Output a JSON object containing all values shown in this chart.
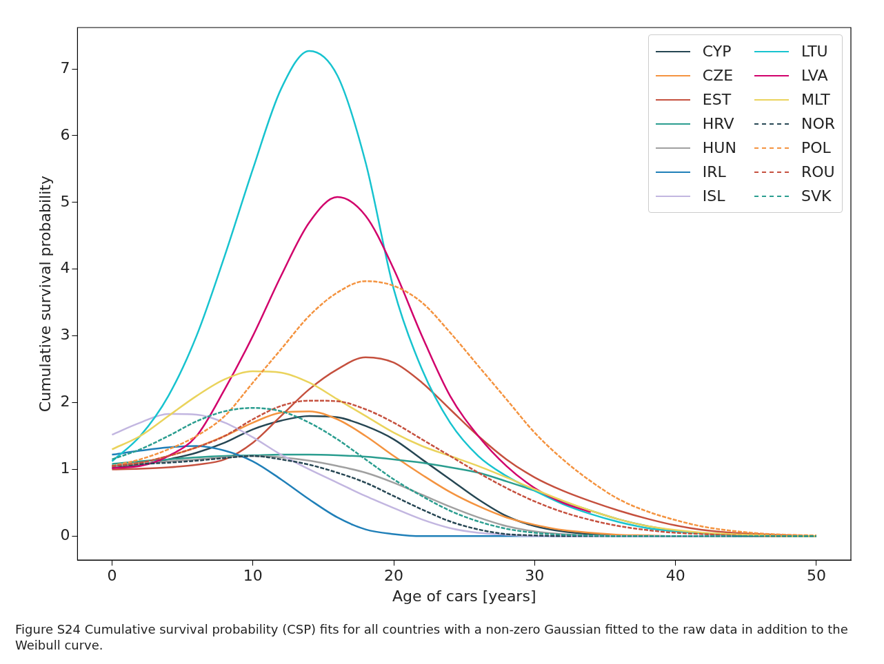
{
  "chart_data": {
    "type": "line",
    "xlabel": "Age of cars [years]",
    "ylabel": "Cumulative survival probability",
    "annotations": [
      "Figure S24  Cumulative survival probability (CSP) fits for all countries with a non-zero Gaussian fitted to the raw data in addition to the Weibull curve."
    ],
    "x": [
      0,
      2,
      4,
      6,
      8,
      10,
      12,
      14,
      16,
      18,
      20,
      22,
      24,
      26,
      28,
      30,
      32,
      34,
      36,
      38,
      40,
      42,
      44,
      46,
      48,
      50
    ],
    "xlim": [
      -2.45,
      52.45
    ],
    "ylim": [
      -0.36,
      7.62
    ],
    "xticks": [
      0,
      10,
      20,
      30,
      40,
      50
    ],
    "yticks": [
      0,
      1,
      2,
      3,
      4,
      5,
      6,
      7
    ],
    "grid": false,
    "legend": "top right",
    "line_style": "solid",
    "series": [
      {
        "name": "CYP",
        "color": "#264653",
        "values": [
          1.02,
          1.07,
          1.15,
          1.25,
          1.4,
          1.6,
          1.73,
          1.8,
          1.78,
          1.65,
          1.45,
          1.15,
          0.85,
          0.55,
          0.3,
          0.15,
          0.07,
          0.03,
          0.01,
          0,
          0,
          0,
          0,
          0,
          0,
          0
        ]
      },
      {
        "name": "CZE",
        "color": "#f4933f",
        "values": [
          1.05,
          1.1,
          1.2,
          1.33,
          1.5,
          1.7,
          1.85,
          1.87,
          1.75,
          1.5,
          1.2,
          0.92,
          0.66,
          0.45,
          0.28,
          0.17,
          0.09,
          0.05,
          0.02,
          0.01,
          0,
          0,
          0,
          0,
          0,
          0
        ]
      },
      {
        "name": "EST",
        "color": "#c5503e",
        "values": [
          1.0,
          1.01,
          1.03,
          1.07,
          1.15,
          1.4,
          1.8,
          2.2,
          2.5,
          2.68,
          2.6,
          2.3,
          1.9,
          1.5,
          1.15,
          0.88,
          0.68,
          0.52,
          0.38,
          0.26,
          0.16,
          0.09,
          0.05,
          0.03,
          0.01,
          0
        ]
      },
      {
        "name": "HRV",
        "color": "#2a9d8f",
        "values": [
          1.08,
          1.12,
          1.15,
          1.18,
          1.2,
          1.21,
          1.22,
          1.22,
          1.21,
          1.19,
          1.15,
          1.1,
          1.03,
          0.95,
          0.82,
          0.68,
          0.52,
          0.38,
          0.25,
          0.15,
          0.08,
          0.04,
          0.02,
          0.01,
          0,
          0
        ]
      },
      {
        "name": "HUN",
        "color": "#a0a0a0",
        "values": [
          1.05,
          1.08,
          1.12,
          1.15,
          1.18,
          1.2,
          1.18,
          1.13,
          1.05,
          0.95,
          0.8,
          0.62,
          0.44,
          0.28,
          0.15,
          0.07,
          0.03,
          0.01,
          0,
          0,
          0,
          0,
          0,
          0,
          0,
          0
        ]
      },
      {
        "name": "IRL",
        "color": "#1f7fb8",
        "values": [
          1.22,
          1.28,
          1.33,
          1.35,
          1.28,
          1.12,
          0.85,
          0.55,
          0.28,
          0.1,
          0.03,
          0,
          0,
          0,
          0,
          0,
          0,
          0,
          0,
          0,
          0,
          0,
          0,
          0,
          null,
          null
        ]
      },
      {
        "name": "ISL",
        "color": "#c2b6e0",
        "values": [
          1.52,
          1.7,
          1.83,
          1.82,
          1.7,
          1.48,
          1.22,
          1.0,
          0.8,
          0.6,
          0.42,
          0.25,
          0.12,
          0.05,
          0.02,
          0,
          0,
          0,
          0,
          0,
          0,
          0,
          0,
          null,
          null,
          null
        ]
      },
      {
        "name": "LTU",
        "color": "#17c3cf",
        "values": [
          1.12,
          1.5,
          2.1,
          3.0,
          4.2,
          5.5,
          6.7,
          7.27,
          6.9,
          5.6,
          3.7,
          2.5,
          1.7,
          1.2,
          0.9,
          0.68,
          0.48,
          0.33,
          0.21,
          0.12,
          0.07,
          0.04,
          null,
          null,
          null,
          null
        ]
      },
      {
        "name": "LVA",
        "color": "#d1006b",
        "values": [
          1.02,
          1.05,
          1.2,
          1.5,
          2.2,
          3.0,
          3.9,
          4.7,
          5.08,
          4.8,
          4.0,
          3.0,
          2.1,
          1.5,
          1.05,
          0.72,
          0.5,
          0.36,
          null,
          null,
          null,
          null,
          null,
          null,
          null,
          null
        ]
      },
      {
        "name": "MLT",
        "color": "#ead35c",
        "values": [
          1.3,
          1.5,
          1.8,
          2.1,
          2.35,
          2.47,
          2.45,
          2.3,
          2.05,
          1.8,
          1.55,
          1.35,
          1.2,
          1.05,
          0.88,
          0.7,
          0.53,
          0.38,
          0.25,
          0.15,
          0.09,
          0.05,
          0.03,
          0.01,
          0,
          0
        ]
      },
      {
        "name": "NOR",
        "color": "#264653",
        "line_style": "dashed",
        "values": [
          1.05,
          1.08,
          1.1,
          1.13,
          1.17,
          1.2,
          1.15,
          1.07,
          0.95,
          0.8,
          0.6,
          0.4,
          0.22,
          0.1,
          0.03,
          0.01,
          0,
          0,
          0,
          0,
          0,
          0,
          0,
          0,
          0,
          0
        ]
      },
      {
        "name": "POL",
        "color": "#f4933f",
        "line_style": "dashed",
        "values": [
          1.05,
          1.15,
          1.3,
          1.5,
          1.8,
          2.3,
          2.8,
          3.3,
          3.65,
          3.82,
          3.75,
          3.5,
          3.05,
          2.55,
          2.05,
          1.55,
          1.15,
          0.82,
          0.55,
          0.37,
          0.24,
          0.14,
          0.08,
          0.04,
          0.02,
          0.01
        ]
      },
      {
        "name": "ROU",
        "color": "#c5503e",
        "line_style": "dashed",
        "values": [
          1.05,
          1.1,
          1.2,
          1.33,
          1.5,
          1.75,
          1.95,
          2.03,
          2.02,
          1.9,
          1.7,
          1.45,
          1.2,
          0.95,
          0.72,
          0.52,
          0.36,
          0.24,
          0.15,
          0.09,
          0.05,
          0.03,
          0.01,
          0,
          0,
          null
        ]
      },
      {
        "name": "SVK",
        "color": "#2a9d8f",
        "line_style": "dashed",
        "values": [
          1.15,
          1.3,
          1.5,
          1.72,
          1.87,
          1.92,
          1.87,
          1.7,
          1.45,
          1.15,
          0.85,
          0.6,
          0.38,
          0.22,
          0.11,
          0.05,
          0.02,
          0.01,
          0,
          0,
          0,
          0,
          0,
          0,
          0,
          0
        ]
      }
    ]
  }
}
